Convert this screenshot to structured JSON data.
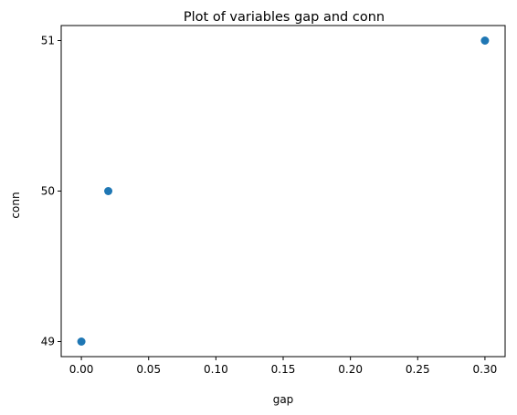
{
  "chart_data": {
    "type": "scatter",
    "title": "Plot of variables gap and conn",
    "xlabel": "gap",
    "ylabel": "conn",
    "x": [
      0.0,
      0.02,
      0.3
    ],
    "y": [
      49,
      50,
      51
    ],
    "xlim": [
      -0.015,
      0.315
    ],
    "ylim": [
      48.9,
      51.1
    ],
    "xticks": [
      0.0,
      0.05,
      0.1,
      0.15,
      0.2,
      0.25,
      0.3
    ],
    "xtick_labels": [
      "0.00",
      "0.05",
      "0.10",
      "0.15",
      "0.20",
      "0.25",
      "0.30"
    ],
    "yticks": [
      49,
      50,
      51
    ],
    "ytick_labels": [
      "49",
      "50",
      "51"
    ],
    "grid": false,
    "marker_color": "#1f77b4"
  }
}
